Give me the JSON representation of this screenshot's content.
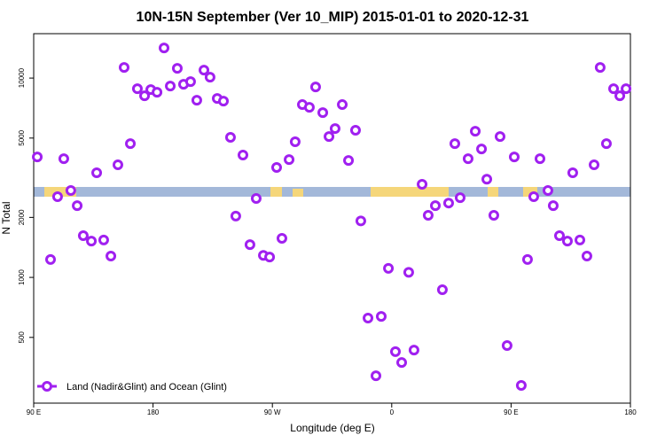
{
  "chart_data": {
    "type": "scatter",
    "title": "10N-15N September (Ver 10_MIP)   2015-01-01 to 2020-12-31",
    "xlabel": "Longitude (deg E)",
    "ylabel": "N Total",
    "xlim": [
      90,
      540
    ],
    "xticks": [
      {
        "value": 90,
        "label": "90 E"
      },
      180,
      {
        "value": 270,
        "label": "90 W"
      },
      {
        "value": 360,
        "label": "0"
      },
      {
        "value": 450,
        "label": "90 E"
      },
      {
        "value": 540,
        "label": "180"
      }
    ],
    "ylim": [
      234,
      16700
    ],
    "ylog": true,
    "yticks": [
      500,
      1000,
      2000,
      5000,
      10000
    ],
    "legend": "bottom-left",
    "series": [
      {
        "name": "Land (Nadir&Glint) and Ocean (Glint)",
        "color": "#a020f0",
        "x": [
          92.7,
          102.7,
          108,
          112.7,
          118,
          122.8,
          127.4,
          133.5,
          137.5,
          142.8,
          148.2,
          153.5,
          158.2,
          162.9,
          168.2,
          173.6,
          178.3,
          183,
          188.3,
          193,
          198.3,
          203,
          208.3,
          213,
          218.4,
          223,
          228.4,
          233.1,
          238.4,
          242.4,
          247.8,
          253.1,
          257.8,
          263.2,
          267.9,
          273.2,
          277.2,
          282.6,
          287.2,
          292.6,
          297.9,
          302.6,
          308,
          312.7,
          317.3,
          322.7,
          327.4,
          332.7,
          336.7,
          342.1,
          348.1,
          352.1,
          357.5,
          362.8,
          367.5,
          372.8,
          376.8,
          382.9,
          387.5,
          392.9,
          398.2,
          402.9,
          407.6,
          411.6,
          417.6,
          423,
          427.7,
          431.7,
          437,
          441.7,
          447,
          452.4,
          457.7,
          462.4,
          467.1,
          471.8,
          477.8,
          481.8,
          486.5,
          492.5,
          496.5,
          501.9,
          507.2,
          512.6,
          517.2,
          521.9,
          527.3,
          532,
          536.7
        ],
        "values": [
          4020,
          1230,
          2540,
          3940,
          2730,
          2290,
          1620,
          1520,
          3350,
          1540,
          1280,
          3670,
          11300,
          4690,
          8840,
          8150,
          8750,
          8490,
          14160,
          9120,
          11190,
          9310,
          9600,
          7740,
          10960,
          10100,
          7900,
          7660,
          5040,
          2030,
          4110,
          1460,
          2490,
          1290,
          1265,
          3560,
          1570,
          3900,
          4790,
          7360,
          7130,
          9030,
          6710,
          5090,
          5580,
          7360,
          3860,
          5470,
          1920,
          625,
          321,
          637,
          1110,
          424,
          374,
          1060,
          432,
          2930,
          2050,
          2290,
          867,
          2360,
          4690,
          2510,
          3940,
          5410,
          4410,
          3110,
          2050,
          5090,
          455,
          4020,
          287,
          1230,
          2540,
          3940,
          2730,
          2290,
          1620,
          1520,
          3350,
          1540,
          1280,
          3670,
          11300,
          4690,
          8840,
          8150,
          8840
        ]
      }
    ]
  }
}
